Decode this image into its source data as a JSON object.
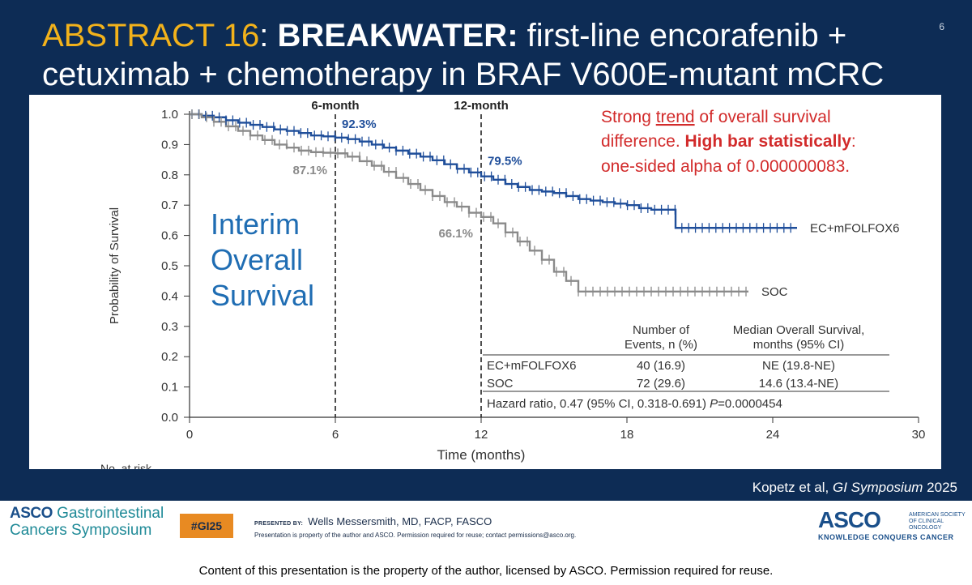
{
  "header": {
    "abstract": "ABSTRACT 16",
    "colon": ":",
    "trial": "BREAKWATER:",
    "title_rest": " first-line encorafenib + cetuximab + chemotherapy in BRAF V600E-mutant mCRC",
    "page_number": "6"
  },
  "chart_data": {
    "type": "line",
    "title": "",
    "xlabel": "Time (months)",
    "ylabel": "Probability of Survival",
    "xlim": [
      0,
      30
    ],
    "ylim": [
      0,
      1.0
    ],
    "x_ticks": [
      0,
      6,
      12,
      18,
      24,
      30
    ],
    "y_ticks": [
      "0.0",
      "0.1",
      "0.2",
      "0.3",
      "0.4",
      "0.5",
      "0.6",
      "0.7",
      "0.8",
      "0.9",
      "1.0"
    ],
    "grid": false,
    "legend": "inline labels at line ends",
    "series": [
      {
        "name": "EC+mFOLFOX6",
        "color": "#1f4e9a",
        "x": [
          0,
          0.5,
          1,
          1.5,
          2,
          2.5,
          3,
          3.5,
          4,
          4.5,
          5,
          5.5,
          6,
          6.5,
          7,
          7.5,
          8,
          8.5,
          9,
          9.5,
          10,
          10.5,
          11,
          11.5,
          12,
          12.5,
          13,
          13.5,
          14,
          14.5,
          15,
          15.5,
          16,
          16.5,
          17,
          17.5,
          18,
          18.5,
          19,
          19.5,
          19.9,
          20.0,
          20.5,
          21,
          22,
          23,
          24,
          25
        ],
        "y": [
          1.0,
          0.995,
          0.99,
          0.98,
          0.972,
          0.965,
          0.958,
          0.95,
          0.945,
          0.938,
          0.93,
          0.927,
          0.923,
          0.918,
          0.91,
          0.9,
          0.89,
          0.88,
          0.87,
          0.86,
          0.848,
          0.835,
          0.82,
          0.808,
          0.795,
          0.784,
          0.77,
          0.76,
          0.75,
          0.745,
          0.74,
          0.73,
          0.72,
          0.715,
          0.71,
          0.705,
          0.7,
          0.69,
          0.685,
          0.685,
          0.685,
          0.625,
          0.625,
          0.625,
          0.625,
          0.625,
          0.625,
          0.625
        ],
        "end_label": "EC+mFOLFOX6"
      },
      {
        "name": "SOC",
        "color": "#8a8a8a",
        "x": [
          0,
          0.5,
          1,
          1.5,
          2,
          2.5,
          3,
          3.5,
          4,
          4.5,
          5,
          5.5,
          6,
          6.5,
          7,
          7.5,
          8,
          8.5,
          9,
          9.5,
          10,
          10.5,
          11,
          11.5,
          12,
          12.5,
          13,
          13.5,
          14,
          14.5,
          15,
          15.5,
          16,
          17,
          18,
          19,
          20,
          21,
          22,
          23
        ],
        "y": [
          1.0,
          0.99,
          0.975,
          0.96,
          0.945,
          0.93,
          0.915,
          0.9,
          0.89,
          0.88,
          0.875,
          0.873,
          0.871,
          0.86,
          0.845,
          0.83,
          0.81,
          0.79,
          0.77,
          0.75,
          0.73,
          0.71,
          0.695,
          0.675,
          0.661,
          0.64,
          0.61,
          0.58,
          0.55,
          0.52,
          0.48,
          0.45,
          0.415,
          0.415,
          0.415,
          0.415,
          0.415,
          0.415,
          0.415,
          0.415
        ],
        "end_label": "SOC"
      }
    ],
    "milestones": [
      {
        "x": 6,
        "label": "6-month"
      },
      {
        "x": 12,
        "label": "12-month"
      }
    ],
    "annotations": [
      {
        "text": "92.3%",
        "series": "EC+mFOLFOX6",
        "x": 6,
        "y": 0.923
      },
      {
        "text": "87.1%",
        "series": "SOC",
        "x": 6,
        "y": 0.871
      },
      {
        "text": "79.5%",
        "series": "EC+mFOLFOX6",
        "x": 12,
        "y": 0.795
      },
      {
        "text": "66.1%",
        "series": "SOC",
        "x": 12,
        "y": 0.661
      }
    ],
    "overlay_title": [
      "Interim",
      "Overall",
      "Survival"
    ],
    "note": {
      "line1_a": "Strong ",
      "line1_u": "trend",
      "line1_b": " of overall survival",
      "line2_a": "difference. ",
      "line2_b": "High bar statistically",
      "line2_c": ":",
      "line3": "one-sided alpha of 0.000000083."
    },
    "table": {
      "col1_header": [
        "Number of",
        "Events, n (%)"
      ],
      "col2_header": [
        "Median Overall Survival,",
        "months (95% CI)"
      ],
      "rows": [
        {
          "arm": "EC+mFOLFOX6",
          "events": "40 (16.9)",
          "median": "NE (19.8-NE)"
        },
        {
          "arm": "SOC",
          "events": "72 (29.6)",
          "median": "14.6 (13.4-NE)"
        }
      ],
      "hr_text": "Hazard ratio, 0.47 (95% CI, 0.318-0.691) ",
      "p_label": "P",
      "p_value": "=0.0000454"
    },
    "risk_label": "No. at risk"
  },
  "citation": {
    "authors": "Kopetz et al, ",
    "journal": "GI Symposium",
    "year": " 2025"
  },
  "footer": {
    "asco_word": "ASCO",
    "gi_word": " Gastrointestinal",
    "cancers_symposium": "Cancers Symposium",
    "hashtag": "#GI25",
    "presented_by": "PRESENTED BY:",
    "presenter": "Wells Messersmith, MD, FACP, FASCO",
    "presenter_note": "Presentation is property of the author and ASCO. Permission required for reuse; contact permissions@asco.org.",
    "asco_logo": "ASCO",
    "asco_society": "AMERICAN SOCIETY OF CLINICAL ONCOLOGY",
    "asco_tagline": "KNOWLEDGE CONQUERS CANCER",
    "copyright": "Content of this presentation is the property of the author, licensed by ASCO. Permission required for reuse."
  }
}
